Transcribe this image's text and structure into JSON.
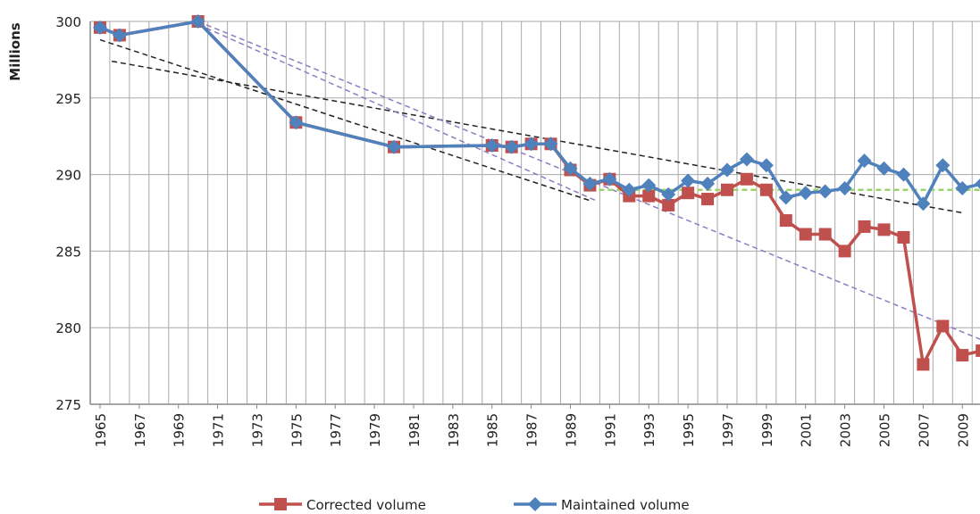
{
  "chart_data": {
    "type": "line",
    "y_label": "Millions",
    "x": [
      1965,
      1966,
      1970,
      1975,
      1980,
      1985,
      1986,
      1987,
      1988,
      1989,
      1990,
      1991,
      1992,
      1993,
      1994,
      1995,
      1996,
      1997,
      1998,
      1999,
      2000,
      2001,
      2002,
      2003,
      2004,
      2005,
      2006,
      2007,
      2008,
      2009,
      2010
    ],
    "series": [
      {
        "name": "Corrected volume",
        "color": "#c0504d",
        "marker": "square",
        "values": [
          299.6,
          299.1,
          300,
          293.4,
          291.8,
          291.9,
          291.8,
          292,
          292,
          290.3,
          289.3,
          289.7,
          288.6,
          288.6,
          288.0,
          288.8,
          288.4,
          289.0,
          289.7,
          289.0,
          287.0,
          286.1,
          286.1,
          285.0,
          286.6,
          286.4,
          285.9,
          277.6,
          280.1,
          278.2,
          278.5
        ]
      },
      {
        "name": "Maintained volume",
        "color": "#4f81bd",
        "marker": "diamond",
        "values": [
          299.6,
          299.1,
          300,
          293.4,
          291.8,
          291.9,
          291.8,
          292,
          292,
          290.4,
          289.4,
          289.7,
          289.0,
          289.3,
          288.7,
          289.6,
          289.4,
          290.3,
          291.0,
          290.6,
          288.5,
          288.8,
          288.9,
          289.1,
          290.9,
          290.4,
          290.0,
          288.1,
          290.6,
          289.1,
          289.4
        ]
      }
    ],
    "trendlines": [
      {
        "color": "#222222",
        "x": [
          1965,
          1990
        ],
        "values": [
          298.8,
          288.3
        ]
      },
      {
        "color": "#222222",
        "x": [
          1965.6,
          2009
        ],
        "values": [
          297.4,
          287.5
        ]
      },
      {
        "color": "#8e7cc3",
        "x": [
          1970,
          1990.3
        ],
        "values": [
          299.8,
          288.3
        ]
      },
      {
        "color": "#8e7cc3",
        "x": [
          1970,
          2010
        ],
        "values": [
          300,
          279.2
        ]
      },
      {
        "color": "#9bd36a",
        "x": [
          1990,
          2010
        ],
        "values": [
          289.0,
          289.0
        ]
      }
    ],
    "xlim": [
      1964.5,
      2009.9
    ],
    "xticks": [
      1965,
      1967,
      1969,
      1971,
      1973,
      1975,
      1977,
      1979,
      1981,
      1983,
      1985,
      1987,
      1989,
      1991,
      1993,
      1995,
      1997,
      1999,
      2001,
      2003,
      2005,
      2007,
      2009
    ],
    "ylim": [
      275,
      300
    ],
    "yticks": [
      275,
      280,
      285,
      290,
      295,
      300
    ],
    "grid": true,
    "legend": "bottom"
  }
}
